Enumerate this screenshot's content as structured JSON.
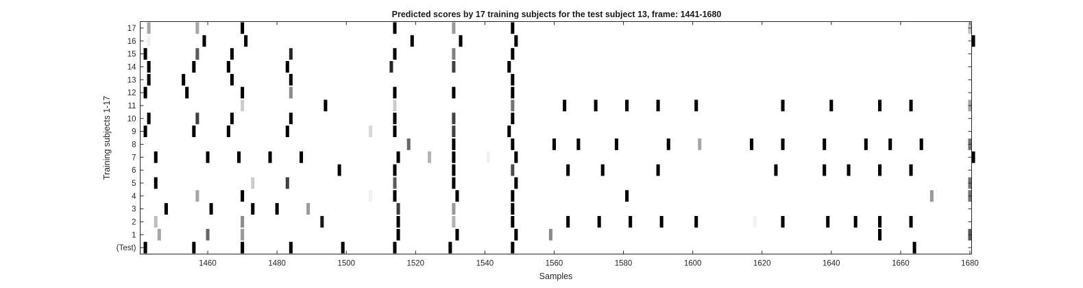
{
  "chart_data": {
    "type": "heatmap",
    "title": "Predicted scores by 17 training subjects for the test subject 13, frame: 1441-1680",
    "xlabel": "Samples",
    "ylabel": "Training subjects 1-17",
    "xlim": [
      1441,
      1680
    ],
    "x_ticks": [
      1460,
      1480,
      1500,
      1520,
      1540,
      1560,
      1580,
      1600,
      1620,
      1640,
      1660,
      1680
    ],
    "y_ticks": [
      "(Test)",
      "1",
      "2",
      "3",
      "4",
      "5",
      "6",
      "7",
      "8",
      "9",
      "10",
      "11",
      "12",
      "13",
      "14",
      "15",
      "16",
      "17"
    ],
    "colormap": "gray-inverted",
    "grid": false,
    "rows": [
      {
        "name": "(Test)",
        "marks": [
          [
            1442,
            1.0
          ],
          [
            1456,
            1.0
          ],
          [
            1470,
            1.0
          ],
          [
            1484,
            1.0
          ],
          [
            1499,
            1.0
          ],
          [
            1514,
            1.0
          ],
          [
            1530,
            1.0
          ],
          [
            1548,
            1.0
          ],
          [
            1664,
            1.0
          ]
        ]
      },
      {
        "name": "1",
        "marks": [
          [
            1446,
            0.35
          ],
          [
            1460,
            0.6
          ],
          [
            1470,
            0.4
          ],
          [
            1515,
            1.0
          ],
          [
            1532,
            1.0
          ],
          [
            1549,
            1.0
          ],
          [
            1559,
            0.45
          ],
          [
            1654,
            1.0
          ],
          [
            1680,
            0.65
          ]
        ]
      },
      {
        "name": "2",
        "marks": [
          [
            1445,
            0.25
          ],
          [
            1470,
            0.45
          ],
          [
            1493,
            0.9
          ],
          [
            1515,
            1.0
          ],
          [
            1531,
            0.3
          ],
          [
            1548,
            1.0
          ],
          [
            1564,
            1.0
          ],
          [
            1573,
            1.0
          ],
          [
            1582,
            1.0
          ],
          [
            1591,
            1.0
          ],
          [
            1601,
            1.0
          ],
          [
            1618,
            0.05
          ],
          [
            1626,
            1.0
          ],
          [
            1639,
            1.0
          ],
          [
            1647,
            1.0
          ],
          [
            1654,
            1.0
          ],
          [
            1663,
            1.0
          ]
        ]
      },
      {
        "name": "3",
        "marks": [
          [
            1448,
            1.0
          ],
          [
            1461,
            1.0
          ],
          [
            1473,
            1.0
          ],
          [
            1480,
            1.0
          ],
          [
            1489,
            0.4
          ],
          [
            1515,
            0.75
          ],
          [
            1531,
            0.4
          ],
          [
            1548,
            1.0
          ]
        ]
      },
      {
        "name": "4",
        "marks": [
          [
            1457,
            0.35
          ],
          [
            1470,
            1.0
          ],
          [
            1507,
            0.05
          ],
          [
            1514,
            1.0
          ],
          [
            1532,
            1.0
          ],
          [
            1548,
            1.0
          ],
          [
            1581,
            1.0
          ],
          [
            1669,
            0.4
          ],
          [
            1680,
            0.55
          ]
        ]
      },
      {
        "name": "5",
        "marks": [
          [
            1445,
            1.0
          ],
          [
            1473,
            0.2
          ],
          [
            1483,
            0.75
          ],
          [
            1514,
            0.65
          ],
          [
            1531,
            1.0
          ],
          [
            1549,
            1.0
          ],
          [
            1680,
            0.55
          ]
        ]
      },
      {
        "name": "6",
        "marks": [
          [
            1498,
            1.0
          ],
          [
            1514,
            1.0
          ],
          [
            1531,
            1.0
          ],
          [
            1548,
            0.7
          ],
          [
            1564,
            1.0
          ],
          [
            1574,
            1.0
          ],
          [
            1590,
            1.0
          ],
          [
            1624,
            1.0
          ],
          [
            1638,
            1.0
          ],
          [
            1645,
            1.0
          ],
          [
            1654,
            1.0
          ],
          [
            1663,
            1.0
          ]
        ]
      },
      {
        "name": "7",
        "marks": [
          [
            1445,
            1.0
          ],
          [
            1460,
            1.0
          ],
          [
            1469,
            1.0
          ],
          [
            1478,
            1.0
          ],
          [
            1487,
            1.0
          ],
          [
            1515,
            1.0
          ],
          [
            1524,
            0.3
          ],
          [
            1531,
            1.0
          ],
          [
            1541,
            0.05
          ],
          [
            1549,
            1.0
          ],
          [
            1681,
            1.0
          ]
        ]
      },
      {
        "name": "8",
        "marks": [
          [
            1518,
            0.6
          ],
          [
            1531,
            1.0
          ],
          [
            1548,
            1.0
          ],
          [
            1560,
            1.0
          ],
          [
            1567,
            1.0
          ],
          [
            1578,
            1.0
          ],
          [
            1593,
            1.0
          ],
          [
            1602,
            0.35
          ],
          [
            1617,
            1.0
          ],
          [
            1626,
            1.0
          ],
          [
            1638,
            1.0
          ],
          [
            1650,
            1.0
          ],
          [
            1657,
            1.0
          ],
          [
            1666,
            1.0
          ],
          [
            1680,
            0.55
          ]
        ]
      },
      {
        "name": "9",
        "marks": [
          [
            1442,
            1.0
          ],
          [
            1456,
            1.0
          ],
          [
            1466,
            1.0
          ],
          [
            1483,
            1.0
          ],
          [
            1507,
            0.15
          ],
          [
            1514,
            1.0
          ],
          [
            1531,
            0.75
          ],
          [
            1547,
            1.0
          ]
        ]
      },
      {
        "name": "10",
        "marks": [
          [
            1443,
            1.0
          ],
          [
            1457,
            0.75
          ],
          [
            1467,
            1.0
          ],
          [
            1484,
            1.0
          ],
          [
            1514,
            1.0
          ],
          [
            1531,
            0.75
          ],
          [
            1548,
            1.0
          ]
        ]
      },
      {
        "name": "11",
        "marks": [
          [
            1470,
            0.2
          ],
          [
            1494,
            1.0
          ],
          [
            1514,
            0.2
          ],
          [
            1548,
            0.55
          ],
          [
            1563,
            1.0
          ],
          [
            1572,
            1.0
          ],
          [
            1581,
            1.0
          ],
          [
            1590,
            1.0
          ],
          [
            1601,
            1.0
          ],
          [
            1626,
            1.0
          ],
          [
            1640,
            1.0
          ],
          [
            1654,
            1.0
          ],
          [
            1663,
            1.0
          ],
          [
            1680,
            0.35
          ]
        ]
      },
      {
        "name": "12",
        "marks": [
          [
            1442,
            1.0
          ],
          [
            1454,
            1.0
          ],
          [
            1470,
            1.0
          ],
          [
            1484,
            0.45
          ],
          [
            1514,
            1.0
          ],
          [
            1531,
            1.0
          ],
          [
            1548,
            1.0
          ]
        ]
      },
      {
        "name": "13",
        "marks": [
          [
            1443,
            1.0
          ],
          [
            1453,
            1.0
          ],
          [
            1467,
            1.0
          ],
          [
            1484,
            1.0
          ],
          [
            1548,
            1.0
          ]
        ]
      },
      {
        "name": "14",
        "marks": [
          [
            1443,
            1.0
          ],
          [
            1456,
            1.0
          ],
          [
            1466,
            1.0
          ],
          [
            1483,
            1.0
          ],
          [
            1513,
            0.85
          ],
          [
            1531,
            0.75
          ],
          [
            1547,
            1.0
          ]
        ]
      },
      {
        "name": "15",
        "marks": [
          [
            1442,
            1.0
          ],
          [
            1457,
            0.65
          ],
          [
            1467,
            1.0
          ],
          [
            1484,
            0.85
          ],
          [
            1514,
            1.0
          ],
          [
            1531,
            0.5
          ],
          [
            1548,
            1.0
          ]
        ]
      },
      {
        "name": "16",
        "marks": [
          [
            1443,
            0.05
          ],
          [
            1459,
            1.0
          ],
          [
            1471,
            1.0
          ],
          [
            1519,
            1.0
          ],
          [
            1533,
            1.0
          ],
          [
            1549,
            1.0
          ],
          [
            1681,
            1.0
          ]
        ]
      },
      {
        "name": "17",
        "marks": [
          [
            1443,
            0.35
          ],
          [
            1457,
            0.35
          ],
          [
            1470,
            1.0
          ],
          [
            1514,
            1.0
          ],
          [
            1531,
            0.4
          ],
          [
            1548,
            1.0
          ],
          [
            1680,
            0.25
          ]
        ]
      }
    ]
  }
}
